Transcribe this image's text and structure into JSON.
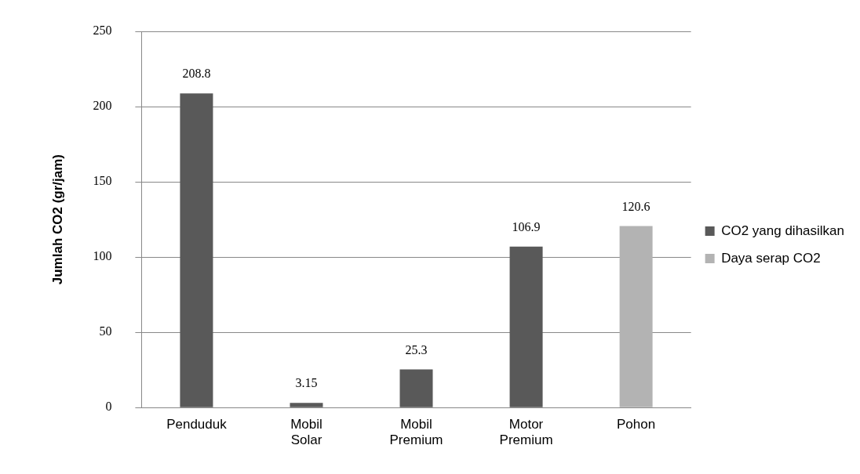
{
  "chart_data": {
    "type": "bar",
    "ylabel": "Jumlah CO2 (gr/jam)",
    "categories": [
      "Penduduk",
      "Mobil Solar",
      "Mobil Premium",
      "Motor Premium",
      "Pohon"
    ],
    "series": [
      {
        "name": "CO2 yang dihasilkan",
        "color": "#595959",
        "values": [
          208.8,
          3.15,
          25.3,
          106.9,
          null
        ]
      },
      {
        "name": "Daya serap CO2",
        "color": "#b3b3b3",
        "values": [
          null,
          null,
          null,
          null,
          120.6
        ]
      }
    ],
    "ylim": [
      0,
      250
    ],
    "yticks": [
      0,
      50,
      100,
      150,
      200,
      250
    ],
    "grid": "y",
    "legend": "right",
    "data_labels": true
  }
}
